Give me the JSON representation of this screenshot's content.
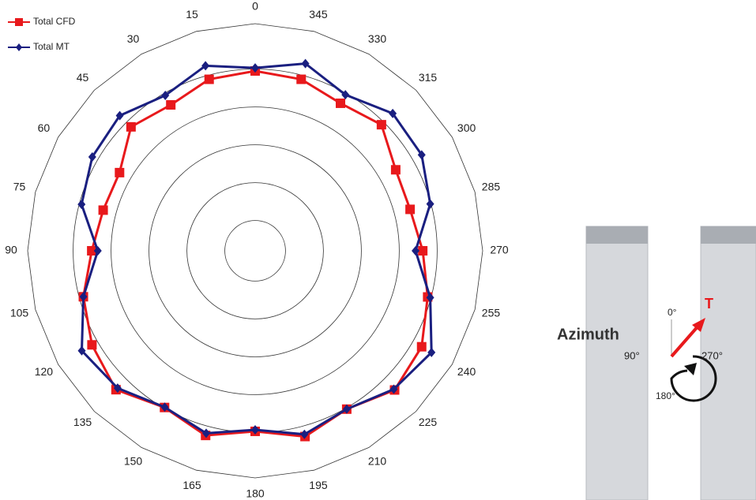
{
  "chart_data": {
    "type": "polar",
    "theta": [
      0,
      15,
      30,
      45,
      60,
      75,
      90,
      105,
      120,
      135,
      150,
      165,
      180,
      195,
      210,
      225,
      240,
      255,
      270,
      285,
      300,
      315,
      330,
      345
    ],
    "direction": "counterclockwise",
    "rlim": [
      0.2,
      6.2
    ],
    "rgrid": [
      1,
      2,
      3,
      4,
      5
    ],
    "legend": "upper left",
    "series": [
      {
        "name": "Total CFD",
        "color": "#e8191c",
        "marker": "square",
        "values": [
          4.95,
          4.89,
          4.65,
          4.83,
          4.33,
          4.35,
          4.51,
          4.89,
          5.17,
          5.39,
          4.98,
          5.25,
          4.97,
          5.28,
          5.03,
          5.4,
          5.27,
          4.91,
          4.62,
          4.43,
          4.48,
          4.91,
          4.7,
          4.89
        ]
      },
      {
        "name": "Total MT",
        "color": "#1a1f80",
        "marker": "diamond",
        "values": [
          5.03,
          5.26,
          4.94,
          5.25,
          5.16,
          4.94,
          4.35,
          4.89,
          5.48,
          5.33,
          4.97,
          5.19,
          4.93,
          5.22,
          5.03,
          5.37,
          5.57,
          4.98,
          4.43,
          4.98,
          5.27,
          5.33,
          4.96,
          5.32
        ]
      }
    ],
    "inset": {
      "label": "Azimuth",
      "angles": [
        "0°",
        "90°",
        "180°",
        "270°"
      ],
      "vector": "T"
    }
  }
}
